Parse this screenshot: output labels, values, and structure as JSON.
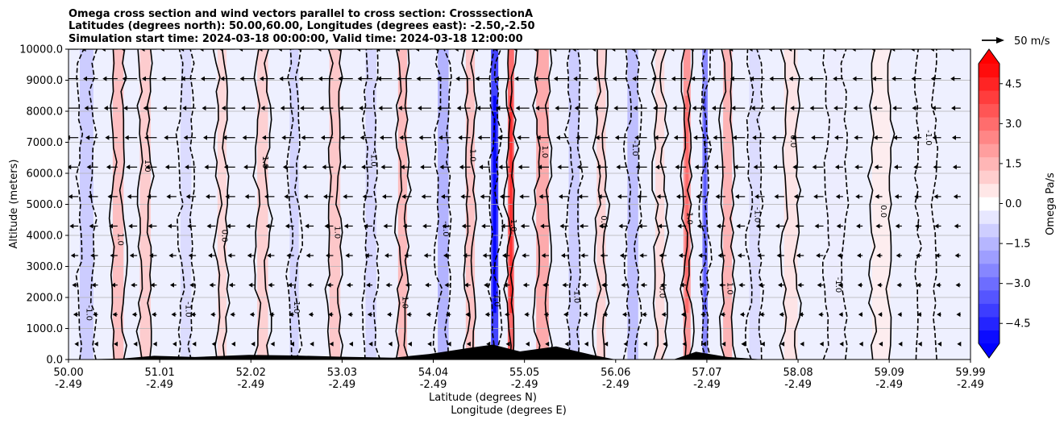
{
  "chart_data": {
    "type": "heatmap",
    "title_lines": [
      "Omega cross section and wind vectors parallel to cross section: CrosssectionA",
      "Latitudes (degrees north): 50.00,60.00, Longitudes (degrees east): -2.50,-2.50",
      "Simulation start time: 2024-03-18 00:00:00, Valid time: 2024-03-18 12:00:00"
    ],
    "ylabel": "Altitude (meters)",
    "xlabel_lines": [
      "Latitude (degrees N)",
      "Longitude (degrees E)"
    ],
    "ylim": [
      0,
      10000
    ],
    "xlim": [
      50.0,
      59.99
    ],
    "y_ticks": [
      {
        "value": 0,
        "label": "0.0"
      },
      {
        "value": 1000,
        "label": "1000.0"
      },
      {
        "value": 2000,
        "label": "2000.0"
      },
      {
        "value": 3000,
        "label": "3000.0"
      },
      {
        "value": 4000,
        "label": "4000.0"
      },
      {
        "value": 5000,
        "label": "5000.0"
      },
      {
        "value": 6000,
        "label": "6000.0"
      },
      {
        "value": 7000,
        "label": "7000.0"
      },
      {
        "value": 8000,
        "label": "8000.0"
      },
      {
        "value": 9000,
        "label": "9000.0"
      },
      {
        "value": 10000,
        "label": "10000.0"
      }
    ],
    "x_ticks": [
      {
        "value": 50.0,
        "lat": "50.00",
        "lon": "-2.49"
      },
      {
        "value": 51.01,
        "lat": "51.01",
        "lon": "-2.49"
      },
      {
        "value": 52.02,
        "lat": "52.02",
        "lon": "-2.49"
      },
      {
        "value": 53.03,
        "lat": "53.03",
        "lon": "-2.49"
      },
      {
        "value": 54.04,
        "lat": "54.04",
        "lon": "-2.49"
      },
      {
        "value": 55.05,
        "lat": "55.05",
        "lon": "-2.49"
      },
      {
        "value": 56.06,
        "lat": "56.06",
        "lon": "-2.49"
      },
      {
        "value": 57.07,
        "lat": "57.07",
        "lon": "-2.49"
      },
      {
        "value": 58.08,
        "lat": "58.08",
        "lon": "-2.49"
      },
      {
        "value": 59.09,
        "lat": "59.09",
        "lon": "-2.49"
      },
      {
        "value": 59.99,
        "lat": "59.99",
        "lon": "-2.49"
      }
    ],
    "grid": "horizontal",
    "colorbar": {
      "label": "Omega Pa/s",
      "range": [
        -5.25,
        5.25
      ],
      "extend": "both",
      "levels": 21,
      "ticks": [
        {
          "value": -4.5,
          "label": "−4.5"
        },
        {
          "value": -3.0,
          "label": "−3.0"
        },
        {
          "value": -1.5,
          "label": "−1.5"
        },
        {
          "value": 0.0,
          "label": "0.0"
        },
        {
          "value": 1.5,
          "label": "1.5"
        },
        {
          "value": 3.0,
          "label": "3.0"
        },
        {
          "value": 4.5,
          "label": "4.5"
        }
      ],
      "negative_color": "#0000ff",
      "positive_color": "#ff0000"
    },
    "quiver_key_label": "50 m/s",
    "omega_bands": [
      {
        "lat": 50.2,
        "w": 0.15,
        "v": -1.2
      },
      {
        "lat": 50.55,
        "w": 0.12,
        "v": 1.5
      },
      {
        "lat": 50.85,
        "w": 0.12,
        "v": 1.2
      },
      {
        "lat": 51.3,
        "w": 0.12,
        "v": -0.8
      },
      {
        "lat": 51.7,
        "w": 0.1,
        "v": 0.9
      },
      {
        "lat": 52.15,
        "w": 0.12,
        "v": 1.1
      },
      {
        "lat": 52.5,
        "w": 0.1,
        "v": -1.0
      },
      {
        "lat": 52.95,
        "w": 0.12,
        "v": 1.3
      },
      {
        "lat": 53.35,
        "w": 0.12,
        "v": -0.9
      },
      {
        "lat": 53.7,
        "w": 0.1,
        "v": 1.6
      },
      {
        "lat": 54.15,
        "w": 0.12,
        "v": -1.8
      },
      {
        "lat": 54.45,
        "w": 0.1,
        "v": 1.4
      },
      {
        "lat": 54.72,
        "w": 0.08,
        "v": -4.5
      },
      {
        "lat": 54.9,
        "w": 0.07,
        "v": 3.5
      },
      {
        "lat": 55.25,
        "w": 0.14,
        "v": 2.0
      },
      {
        "lat": 55.6,
        "w": 0.12,
        "v": -1.2
      },
      {
        "lat": 55.9,
        "w": 0.1,
        "v": 1.0
      },
      {
        "lat": 56.25,
        "w": 0.12,
        "v": -1.5
      },
      {
        "lat": 56.55,
        "w": 0.1,
        "v": 0.8
      },
      {
        "lat": 56.85,
        "w": 0.08,
        "v": 2.5
      },
      {
        "lat": 57.05,
        "w": 0.06,
        "v": -2.8
      },
      {
        "lat": 57.3,
        "w": 0.1,
        "v": 1.8
      },
      {
        "lat": 57.6,
        "w": 0.12,
        "v": -0.8
      },
      {
        "lat": 58.0,
        "w": 0.15,
        "v": 0.6
      },
      {
        "lat": 58.5,
        "w": 0.2,
        "v": -0.4
      },
      {
        "lat": 59.0,
        "w": 0.2,
        "v": 0.4
      },
      {
        "lat": 59.5,
        "w": 0.2,
        "v": -0.3
      }
    ],
    "terrain": [
      {
        "lat": 50.0,
        "h": 0
      },
      {
        "lat": 50.6,
        "h": 30
      },
      {
        "lat": 50.95,
        "h": 120
      },
      {
        "lat": 51.4,
        "h": 80
      },
      {
        "lat": 52.0,
        "h": 150
      },
      {
        "lat": 52.5,
        "h": 130
      },
      {
        "lat": 53.0,
        "h": 90
      },
      {
        "lat": 53.6,
        "h": 60
      },
      {
        "lat": 54.0,
        "h": 180
      },
      {
        "lat": 54.45,
        "h": 380
      },
      {
        "lat": 54.7,
        "h": 480
      },
      {
        "lat": 55.0,
        "h": 260
      },
      {
        "lat": 55.4,
        "h": 420
      },
      {
        "lat": 55.8,
        "h": 150
      },
      {
        "lat": 56.06,
        "h": 0
      },
      {
        "lat": 56.7,
        "h": 0
      },
      {
        "lat": 56.95,
        "h": 250
      },
      {
        "lat": 57.3,
        "h": 80
      },
      {
        "lat": 57.7,
        "h": 0
      },
      {
        "lat": 59.99,
        "h": 0
      }
    ],
    "contour_labels": [
      "0.0",
      "1.0",
      "-1.0"
    ]
  }
}
